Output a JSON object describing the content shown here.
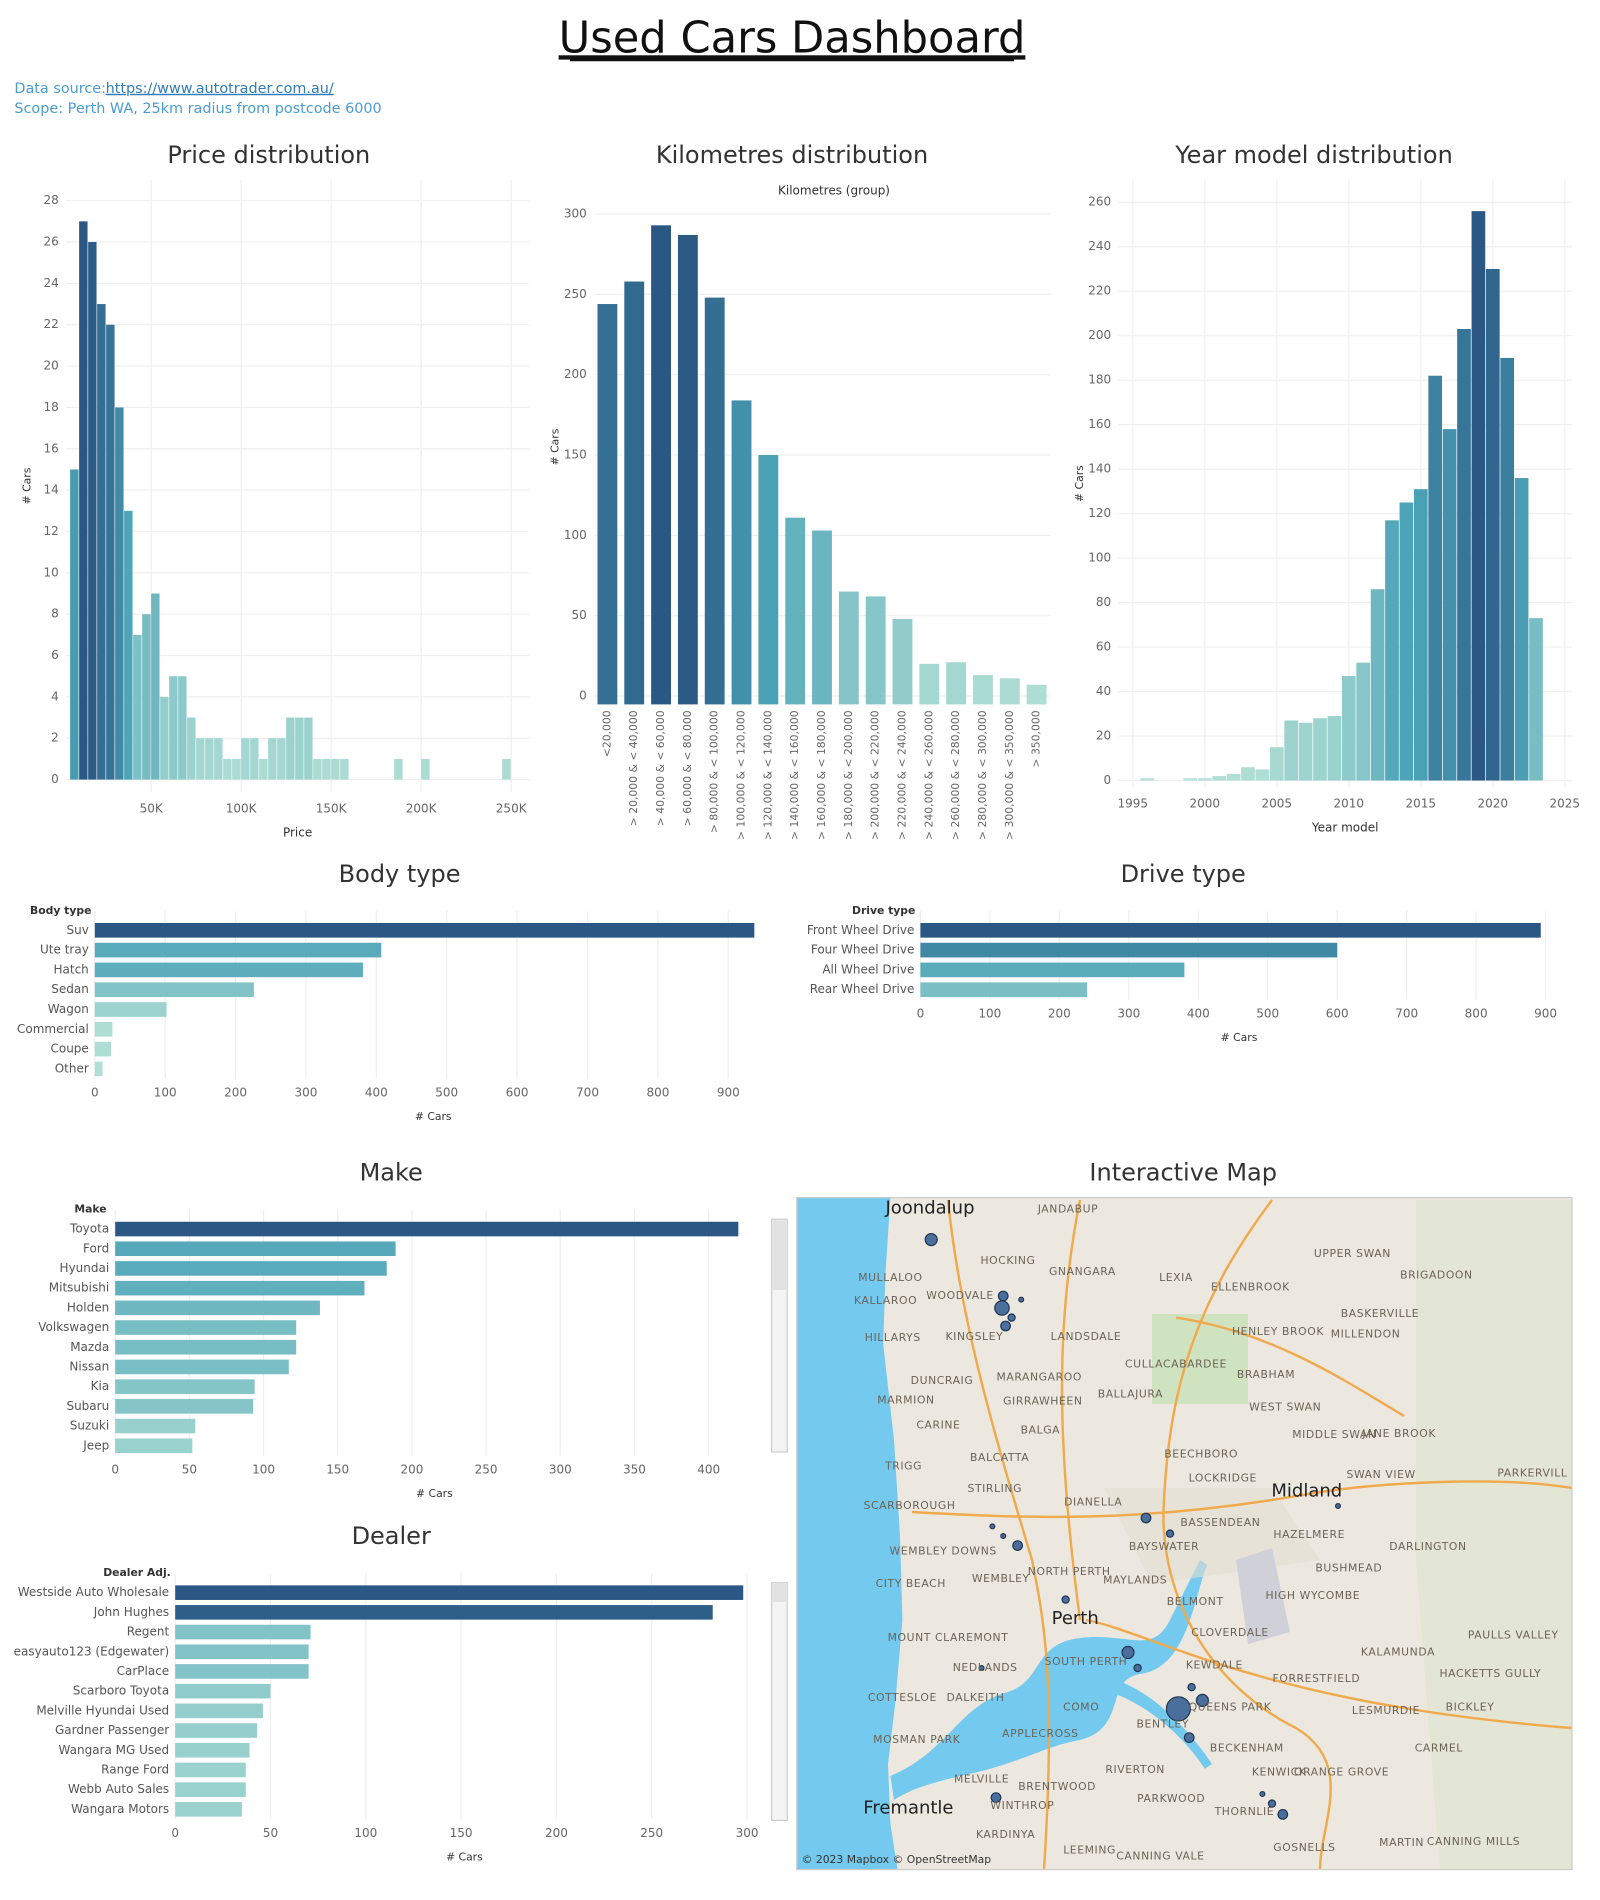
{
  "header": {
    "title": "Used Cars Dashboard",
    "source_label": "Data source:",
    "source_url": "https://www.autotrader.com.au/",
    "scope": "Scope: Perth WA, 25km radius from postcode 6000"
  },
  "chart_data": [
    {
      "type": "histogram",
      "title": "Price distribution",
      "xlabel": "Price",
      "ylabel": "# Cars",
      "bins": [
        5000,
        10000,
        15000,
        20000,
        25000,
        30000,
        35000,
        40000,
        45000,
        50000,
        55000,
        60000,
        65000,
        70000,
        75000,
        80000,
        85000,
        90000,
        95000,
        100000,
        105000,
        110000,
        115000,
        120000,
        125000,
        130000,
        135000,
        140000,
        145000,
        150000,
        155000,
        160000,
        165000,
        170000,
        175000,
        180000,
        185000,
        190000,
        195000,
        200000,
        205000,
        210000,
        215000,
        220000,
        225000,
        230000,
        235000,
        240000,
        245000,
        250000
      ],
      "values": [
        15,
        27,
        26,
        23,
        22,
        18,
        13,
        7,
        8,
        9,
        4,
        5,
        5,
        3,
        2,
        2,
        2,
        1,
        1,
        2,
        2,
        1,
        2,
        2,
        3,
        3,
        3,
        1,
        1,
        1,
        1,
        0,
        0,
        0,
        0,
        0,
        1,
        0,
        0,
        1,
        0,
        0,
        0,
        0,
        0,
        0,
        0,
        0,
        1
      ],
      "xlim": [
        2700,
        260000
      ],
      "xticks": [
        {
          "value": 50000,
          "label": "50K"
        },
        {
          "value": 100000,
          "label": "100K"
        },
        {
          "value": 150000,
          "label": "150K"
        },
        {
          "value": 200000,
          "label": "200K"
        },
        {
          "value": 250000,
          "label": "250K"
        }
      ],
      "ylim": [
        -0.6,
        29
      ],
      "yticks": [
        0,
        2,
        4,
        6,
        8,
        10,
        12,
        14,
        16,
        18,
        20,
        22,
        24,
        26,
        28
      ],
      "grid": true,
      "color_scale": [
        "#b3e0d5",
        "#4ba3b7",
        "#2a5783"
      ]
    },
    {
      "type": "bar",
      "title": "Kilometres distribution",
      "subtitle": "Kilometres (group)",
      "ylabel": "# Cars",
      "categories": [
        "<20,000",
        "> 20,000 & < 40,000",
        "> 40,000 & < 60,000",
        "> 60,000 & < 80,000",
        "> 80,000 & < 100,000",
        "> 100,000 & < 120,000",
        "> 120,000 & < 140,000",
        "> 140,000 & < 160,000",
        "> 160,000 & < 180,000",
        "> 180,000 & < 200,000",
        "> 200,000 & < 220,000",
        "> 220,000 & < 240,000",
        "> 240,000 & < 260,000",
        "> 260,000 & < 280,000",
        "> 280,000 & < 300,000",
        "> 300,000 & < 350,000",
        "> 350,000"
      ],
      "values": [
        244,
        258,
        293,
        287,
        248,
        184,
        150,
        111,
        103,
        65,
        62,
        48,
        20,
        21,
        13,
        11,
        7
      ],
      "ylim": [
        0,
        310
      ],
      "yticks": [
        0,
        50,
        100,
        150,
        200,
        250,
        300
      ],
      "grid": true,
      "color_scale": [
        "#b3e0d5",
        "#4ba3b7",
        "#2a5783"
      ]
    },
    {
      "type": "bar",
      "title": "Year model distribution",
      "xlabel": "Year model",
      "ylabel": "# Cars",
      "x": [
        1996,
        1999,
        2000,
        2001,
        2002,
        2003,
        2004,
        2005,
        2006,
        2007,
        2008,
        2009,
        2010,
        2011,
        2012,
        2013,
        2014,
        2015,
        2016,
        2017,
        2018,
        2019,
        2020,
        2021,
        2022,
        2023
      ],
      "values": [
        1,
        1,
        1,
        2,
        3,
        6,
        5,
        15,
        27,
        26,
        28,
        29,
        47,
        53,
        86,
        117,
        125,
        131,
        182,
        158,
        203,
        256,
        230,
        190,
        136,
        73
      ],
      "xlim": [
        1994,
        2025.5
      ],
      "xticks": [
        1995,
        2000,
        2005,
        2010,
        2015,
        2020,
        2025
      ],
      "ylim": [
        -3,
        270
      ],
      "yticks": [
        0,
        20,
        40,
        60,
        80,
        100,
        120,
        140,
        160,
        180,
        200,
        220,
        240,
        260
      ],
      "grid": true,
      "color_scale": [
        "#b3e0d5",
        "#4ba3b7",
        "#2a5783"
      ]
    },
    {
      "type": "hbar",
      "title": "Body type",
      "category_label": "Body type",
      "xlabel": "# Cars",
      "categories": [
        "Suv",
        "Ute tray",
        "Hatch",
        "Sedan",
        "Wagon",
        "Commercial",
        "Coupe",
        "Other"
      ],
      "values": [
        937,
        407,
        381,
        226,
        102,
        25,
        23,
        11
      ],
      "xlim": [
        0,
        982
      ],
      "xticks": [
        0,
        100,
        200,
        300,
        400,
        500,
        600,
        700,
        800,
        900
      ],
      "grid": true,
      "color_scale": [
        "#b3e0d5",
        "#4ba3b7",
        "#2a5783"
      ]
    },
    {
      "type": "hbar",
      "title": "Drive type",
      "category_label": "Drive type",
      "xlabel": "# Cars",
      "categories": [
        "Front Wheel Drive",
        "Four Wheel Drive",
        "All Wheel Drive",
        "Rear Wheel Drive"
      ],
      "values": [
        893,
        600,
        380,
        240
      ],
      "xlim": [
        0,
        938
      ],
      "xticks": [
        0,
        100,
        200,
        300,
        400,
        500,
        600,
        700,
        800,
        900
      ],
      "grid": true,
      "color_scale": [
        "#b3e0d5",
        "#4ba3b7",
        "#2a5783"
      ]
    },
    {
      "type": "hbar",
      "title": "Make",
      "category_label": "Make",
      "xlabel": "# Cars",
      "categories": [
        "Toyota",
        "Ford",
        "Hyundai",
        "Mitsubishi",
        "Holden",
        "Volkswagen",
        "Mazda",
        "Nissan",
        "Kia",
        "Subaru",
        "Suzuki",
        "Jeep"
      ],
      "values": [
        420,
        189,
        183,
        168,
        138,
        122,
        122,
        117,
        94,
        93,
        54,
        52
      ],
      "xlim": [
        0,
        440
      ],
      "xticks": [
        0,
        50,
        100,
        150,
        200,
        250,
        300,
        350,
        400
      ],
      "grid": true,
      "color_scale": [
        "#b3e0d5",
        "#4ba3b7",
        "#2a5783"
      ]
    },
    {
      "type": "hbar",
      "title": "Dealer",
      "category_label": "Dealer Adj.",
      "xlabel": "# Cars",
      "categories": [
        "Westside Auto Wholesale",
        "John Hughes",
        "Regent",
        "easyauto123 (Edgewater)",
        "CarPlace",
        "Scarboro Toyota",
        "Melville Hyundai Used",
        "Gardner Passenger",
        "Wangara MG Used",
        "Range Ford",
        "Webb Auto Sales",
        "Wangara Motors"
      ],
      "values": [
        298,
        282,
        71,
        70,
        70,
        50,
        46,
        43,
        39,
        37,
        37,
        35
      ],
      "xlim": [
        0,
        311
      ],
      "xticks": [
        0,
        50,
        100,
        150,
        200,
        250,
        300
      ],
      "grid": true,
      "color_scale": [
        "#b3e0d5",
        "#4ba3b7",
        "#2a5783"
      ]
    }
  ],
  "map": {
    "title": "Interactive Map",
    "attribution": "© 2023 Mapbox © OpenStreetMap",
    "labels": [
      "Joondalup",
      "JANDABUP",
      "UPPER SWAN",
      "MULLALOO",
      "HOCKING",
      "GNANGARA",
      "LEXIA",
      "BRIGADOON",
      "KALLAROO",
      "WOODVALE",
      "ELLENBROOK",
      "HILLARYS",
      "KINGSLEY",
      "LANDSDALE",
      "BASKERVILLE",
      "HENLEY BROOK",
      "MILLENDON",
      "CULLACABARDEE",
      "BRABHAM",
      "MARANGAROO",
      "DUNCRAIG",
      "MARMION",
      "GIRRAWHEEN",
      "BALLAJURA",
      "WEST SWAN",
      "CARINE",
      "BALGA",
      "MIDDLE SWAN",
      "JANE BROOK",
      "TRIGG",
      "BALCATTA",
      "BEECHBORO",
      "SWAN VIEW",
      "PARKERVILL",
      "STIRLING",
      "LOCKRIDGE",
      "Midland",
      "SCARBOROUGH",
      "DIANELLA",
      "BASSENDEAN",
      "HAZELMERE",
      "WEMBLEY DOWNS",
      "BAYSWATER",
      "DARLINGTON",
      "BUSHMEAD",
      "CITY BEACH",
      "WEMBLEY",
      "NORTH PERTH",
      "MAYLANDS",
      "HIGH WYCOMBE",
      "Perth",
      "BELMONT",
      "MOUNT CLAREMONT",
      "CLOVERDALE",
      "PAULLS VALLEY",
      "KALAMUNDA",
      "NEDLANDS",
      "SOUTH PERTH",
      "KEWDALE",
      "FORRESTFIELD",
      "HACKETTS GULLY",
      "COTTESLOE",
      "DALKEITH",
      "COMO",
      "QUEENS PARK",
      "LESMURDIE",
      "BICKLEY",
      "MOSMAN PARK",
      "APPLECROSS",
      "BENTLEY",
      "BECKENHAM",
      "CARMEL",
      "RIVERTON",
      "KENWICK",
      "ORANGE GROVE",
      "MELVILLE",
      "BRENTWOOD",
      "Fremantle",
      "WINTHROP",
      "PARKWOOD",
      "THORNLIE",
      "MARTIN",
      "KARDINYA",
      "LEEMING",
      "CANNING VALE",
      "GOSNELLS",
      "CANNING MILLS"
    ]
  }
}
